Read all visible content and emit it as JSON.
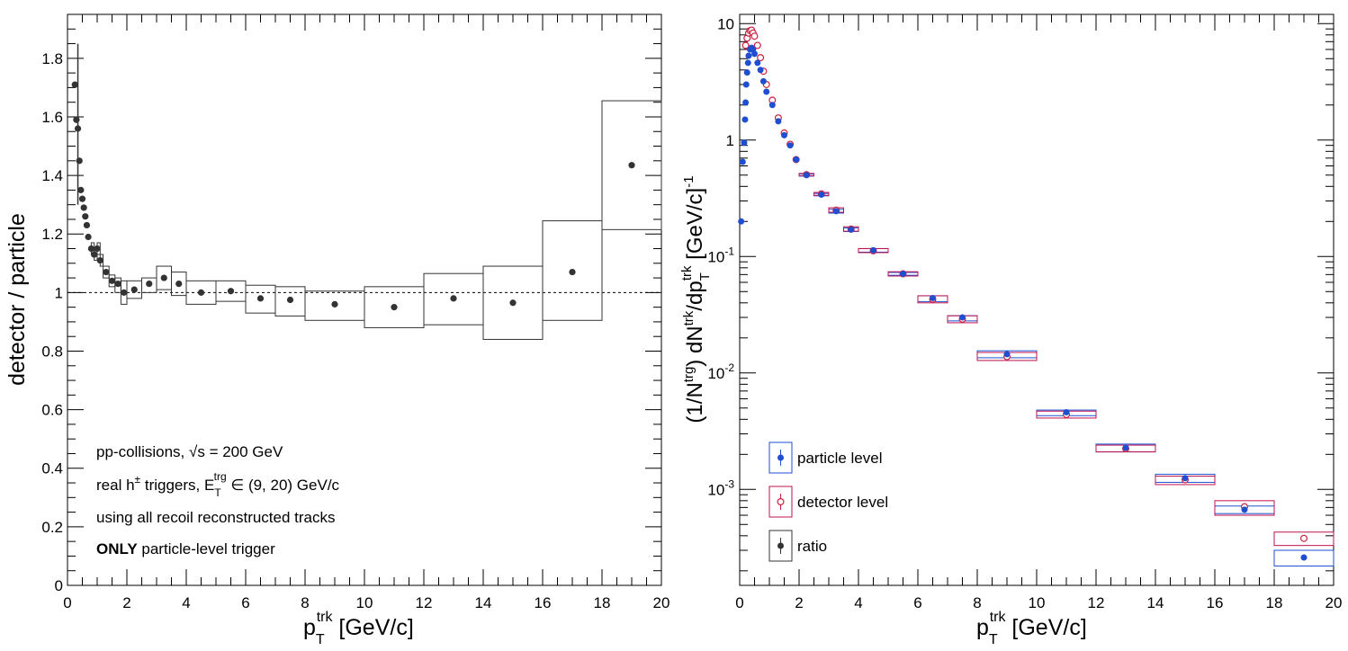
{
  "chart_data": [
    {
      "type": "scatter",
      "ylabel": "detector / particle",
      "xlabel": {
        "main": "p",
        "sub": "T",
        "sup": "trk",
        "unit": " [GeV/c]"
      },
      "xlim": [
        0,
        20
      ],
      "ylim": [
        0,
        1.95
      ],
      "x_ticks": [
        "0",
        "2",
        "4",
        "6",
        "8",
        "10",
        "12",
        "14",
        "16",
        "18",
        "20"
      ],
      "y_ticks": [
        "0",
        "0.2",
        "0.4",
        "0.6",
        "0.8",
        "1",
        "1.2",
        "1.4",
        "1.6",
        "1.8"
      ],
      "reference_line": 1,
      "annotations": {
        "line1_pre": "pp-collisions, ",
        "line1_sqrt": "√s",
        "line1_post": " = 200 GeV",
        "line2_pre": "real h",
        "line2_sup": "±",
        "line2_mid": " triggers, E",
        "line2_sub": "T",
        "line2_sup2": "trg",
        "line2_post": " ∈ (9, 20) GeV/c",
        "line3": "using all recoil reconstructed tracks",
        "line4_bold": "ONLY",
        "line4_post": " particle-level trigger"
      },
      "series": [
        {
          "name": "ratio",
          "color": "#333333",
          "points": [
            [
              0.25,
              1.71
            ],
            [
              0.3,
              1.59
            ],
            [
              0.35,
              1.56
            ],
            [
              0.4,
              1.45
            ],
            [
              0.45,
              1.35
            ],
            [
              0.5,
              1.32
            ],
            [
              0.55,
              1.29
            ],
            [
              0.6,
              1.26
            ],
            [
              0.65,
              1.23
            ],
            [
              0.7,
              1.19
            ],
            [
              0.8,
              1.15
            ],
            [
              0.9,
              1.13
            ],
            [
              1.0,
              1.15
            ],
            [
              1.1,
              1.11
            ],
            [
              1.3,
              1.07
            ],
            [
              1.5,
              1.04
            ],
            [
              1.7,
              1.03
            ],
            [
              1.9,
              1.0
            ],
            [
              2.25,
              1.01
            ],
            [
              2.75,
              1.03
            ],
            [
              3.25,
              1.05
            ],
            [
              3.75,
              1.03
            ],
            [
              4.5,
              1.0
            ],
            [
              5.5,
              1.005
            ],
            [
              6.5,
              0.98
            ],
            [
              7.5,
              0.975
            ],
            [
              9,
              0.96
            ],
            [
              11,
              0.95
            ],
            [
              13,
              0.98
            ],
            [
              15,
              0.965
            ],
            [
              17,
              1.07
            ],
            [
              19,
              1.435
            ]
          ],
          "syst": [
            [
              0.8,
              0.9,
              1.13,
              1.17
            ],
            [
              0.9,
              1.0,
              1.11,
              1.15
            ],
            [
              1.0,
              1.1,
              1.13,
              1.17
            ],
            [
              1.1,
              1.2,
              1.09,
              1.13
            ],
            [
              1.2,
              1.4,
              1.05,
              1.09
            ],
            [
              1.4,
              1.6,
              1.02,
              1.06
            ],
            [
              1.6,
              1.8,
              1.0,
              1.05
            ],
            [
              1.8,
              2.0,
              0.96,
              1.04
            ],
            [
              2.0,
              2.5,
              0.98,
              1.04
            ],
            [
              2.5,
              3.0,
              1.0,
              1.05
            ],
            [
              3.0,
              3.5,
              1.01,
              1.09
            ],
            [
              3.5,
              4.0,
              0.99,
              1.07
            ],
            [
              4.0,
              5.0,
              0.96,
              1.04
            ],
            [
              5.0,
              6.0,
              0.97,
              1.04
            ],
            [
              6.0,
              7.0,
              0.93,
              1.025
            ],
            [
              7.0,
              8.0,
              0.92,
              1.02
            ],
            [
              8.0,
              10.0,
              0.905,
              1.005
            ],
            [
              10.0,
              12.0,
              0.88,
              1.02
            ],
            [
              12.0,
              14.0,
              0.89,
              1.065
            ],
            [
              14.0,
              16.0,
              0.84,
              1.09
            ],
            [
              16.0,
              18.0,
              0.905,
              1.245
            ],
            [
              18.0,
              20.0,
              1.215,
              1.655
            ]
          ]
        }
      ]
    },
    {
      "type": "scatter",
      "scale": "log",
      "ylabel": {
        "pre": "(1/N",
        "sup1": "trg",
        "mid": ") dN",
        "sup2": "trk",
        "mid2": "/dp",
        "sub": "T",
        "sup3": "trk",
        "post": " [GeV/c]",
        "sup4": "-1"
      },
      "xlabel": {
        "main": "p",
        "sub": "T",
        "sup": "trk",
        "unit": " [GeV/c]"
      },
      "xlim": [
        0,
        20
      ],
      "ylim": [
        0.00015,
        12
      ],
      "x_ticks": [
        "0",
        "2",
        "4",
        "6",
        "8",
        "10",
        "12",
        "14",
        "16",
        "18",
        "20"
      ],
      "y_ticks": [
        {
          "base": "10",
          "exp": "",
          "value": 10
        },
        {
          "base": "1",
          "exp": "",
          "value": 1
        },
        {
          "base": "10",
          "exp": "-1",
          "value": 0.1
        },
        {
          "base": "10",
          "exp": "-2",
          "value": 0.01
        },
        {
          "base": "10",
          "exp": "-3",
          "value": 0.001
        }
      ],
      "legend": {
        "position": "bottom-left",
        "entries": [
          {
            "label": "particle level",
            "color": "#1f4fd0",
            "marker": "filled",
            "box_color": "#1f4fd0"
          },
          {
            "label": "detector level",
            "color": "#cc1f3f",
            "marker": "open",
            "box_color": "#c01050"
          },
          {
            "label": "ratio",
            "color": "#333333",
            "marker": "filled",
            "box_color": "#333333"
          }
        ]
      },
      "series": [
        {
          "name": "particle level",
          "color": "#1f4fd0",
          "marker": "filled",
          "points": [
            [
              0.05,
              0.2
            ],
            [
              0.1,
              0.65
            ],
            [
              0.15,
              0.95
            ],
            [
              0.18,
              1.5
            ],
            [
              0.2,
              2.1
            ],
            [
              0.22,
              3.0
            ],
            [
              0.25,
              3.8
            ],
            [
              0.28,
              4.6
            ],
            [
              0.3,
              5.3
            ],
            [
              0.35,
              6.0
            ],
            [
              0.4,
              6.2
            ],
            [
              0.45,
              6.0
            ],
            [
              0.5,
              5.5
            ],
            [
              0.6,
              4.6
            ],
            [
              0.7,
              4.0
            ],
            [
              0.8,
              3.2
            ],
            [
              0.9,
              2.6
            ],
            [
              1.1,
              2.0
            ],
            [
              1.3,
              1.45
            ],
            [
              1.5,
              1.1
            ],
            [
              1.7,
              0.9
            ],
            [
              1.9,
              0.68
            ],
            [
              2.25,
              0.5
            ],
            [
              2.75,
              0.34
            ],
            [
              3.25,
              0.245
            ],
            [
              3.75,
              0.17
            ],
            [
              4.5,
              0.113
            ],
            [
              5.5,
              0.071
            ],
            [
              6.5,
              0.044
            ],
            [
              7.5,
              0.03
            ],
            [
              9,
              0.0145
            ],
            [
              11,
              0.0046
            ],
            [
              13,
              0.00228
            ],
            [
              15,
              0.00125
            ],
            [
              17,
              0.00067
            ],
            [
              19,
              0.00026
            ]
          ],
          "syst": [
            [
              2,
              2.5,
              0.49,
              0.51
            ],
            [
              2.5,
              3.0,
              0.332,
              0.348
            ],
            [
              3.0,
              3.5,
              0.236,
              0.254
            ],
            [
              3.5,
              4.0,
              0.164,
              0.176
            ],
            [
              4.0,
              5.0,
              0.109,
              0.117
            ],
            [
              5.0,
              6.0,
              0.069,
              0.073
            ],
            [
              6.0,
              7.0,
              0.041,
              0.046
            ],
            [
              7.0,
              8.0,
              0.028,
              0.031
            ],
            [
              8.0,
              10.0,
              0.0135,
              0.0155
            ],
            [
              10.0,
              12.0,
              0.0043,
              0.0048
            ],
            [
              12.0,
              14.0,
              0.0021,
              0.00245
            ],
            [
              14.0,
              16.0,
              0.00115,
              0.00135
            ],
            [
              16.0,
              18.0,
              0.00062,
              0.00072
            ],
            [
              18.0,
              20.0,
              0.00022,
              0.0003
            ]
          ]
        },
        {
          "name": "detector level",
          "color": "#cc1f3f",
          "marker": "open",
          "points": [
            [
              0.2,
              6.5
            ],
            [
              0.25,
              7.5
            ],
            [
              0.3,
              8.3
            ],
            [
              0.35,
              8.7
            ],
            [
              0.4,
              8.8
            ],
            [
              0.45,
              8.3
            ],
            [
              0.5,
              7.8
            ],
            [
              0.6,
              6.5
            ],
            [
              0.7,
              5.1
            ],
            [
              0.8,
              3.9
            ],
            [
              0.9,
              3.0
            ],
            [
              1.1,
              2.2
            ],
            [
              1.3,
              1.55
            ],
            [
              1.5,
              1.15
            ],
            [
              1.7,
              0.92
            ],
            [
              1.9,
              0.68
            ],
            [
              2.25,
              0.505
            ],
            [
              2.75,
              0.345
            ],
            [
              3.25,
              0.25
            ],
            [
              3.75,
              0.172
            ],
            [
              4.5,
              0.112
            ],
            [
              5.5,
              0.071
            ],
            [
              6.5,
              0.043
            ],
            [
              7.5,
              0.029
            ],
            [
              9,
              0.0138
            ],
            [
              11,
              0.0044
            ],
            [
              13,
              0.00224
            ],
            [
              15,
              0.00121
            ],
            [
              17,
              0.00071
            ],
            [
              19,
              0.00038
            ]
          ],
          "syst": [
            [
              2,
              2.5,
              0.493,
              0.517
            ],
            [
              2.5,
              3.0,
              0.335,
              0.355
            ],
            [
              3.0,
              3.5,
              0.24,
              0.262
            ],
            [
              3.5,
              4.0,
              0.165,
              0.18
            ],
            [
              4.0,
              5.0,
              0.108,
              0.117
            ],
            [
              5.0,
              6.0,
              0.068,
              0.074
            ],
            [
              6.0,
              7.0,
              0.04,
              0.046
            ],
            [
              7.0,
              8.0,
              0.027,
              0.031
            ],
            [
              8.0,
              10.0,
              0.0128,
              0.015
            ],
            [
              10.0,
              12.0,
              0.0041,
              0.0047
            ],
            [
              12.0,
              14.0,
              0.0021,
              0.0024
            ],
            [
              14.0,
              16.0,
              0.0011,
              0.0013
            ],
            [
              16.0,
              18.0,
              0.0006,
              0.0008
            ],
            [
              18.0,
              20.0,
              0.00033,
              0.00043
            ]
          ]
        }
      ]
    }
  ]
}
